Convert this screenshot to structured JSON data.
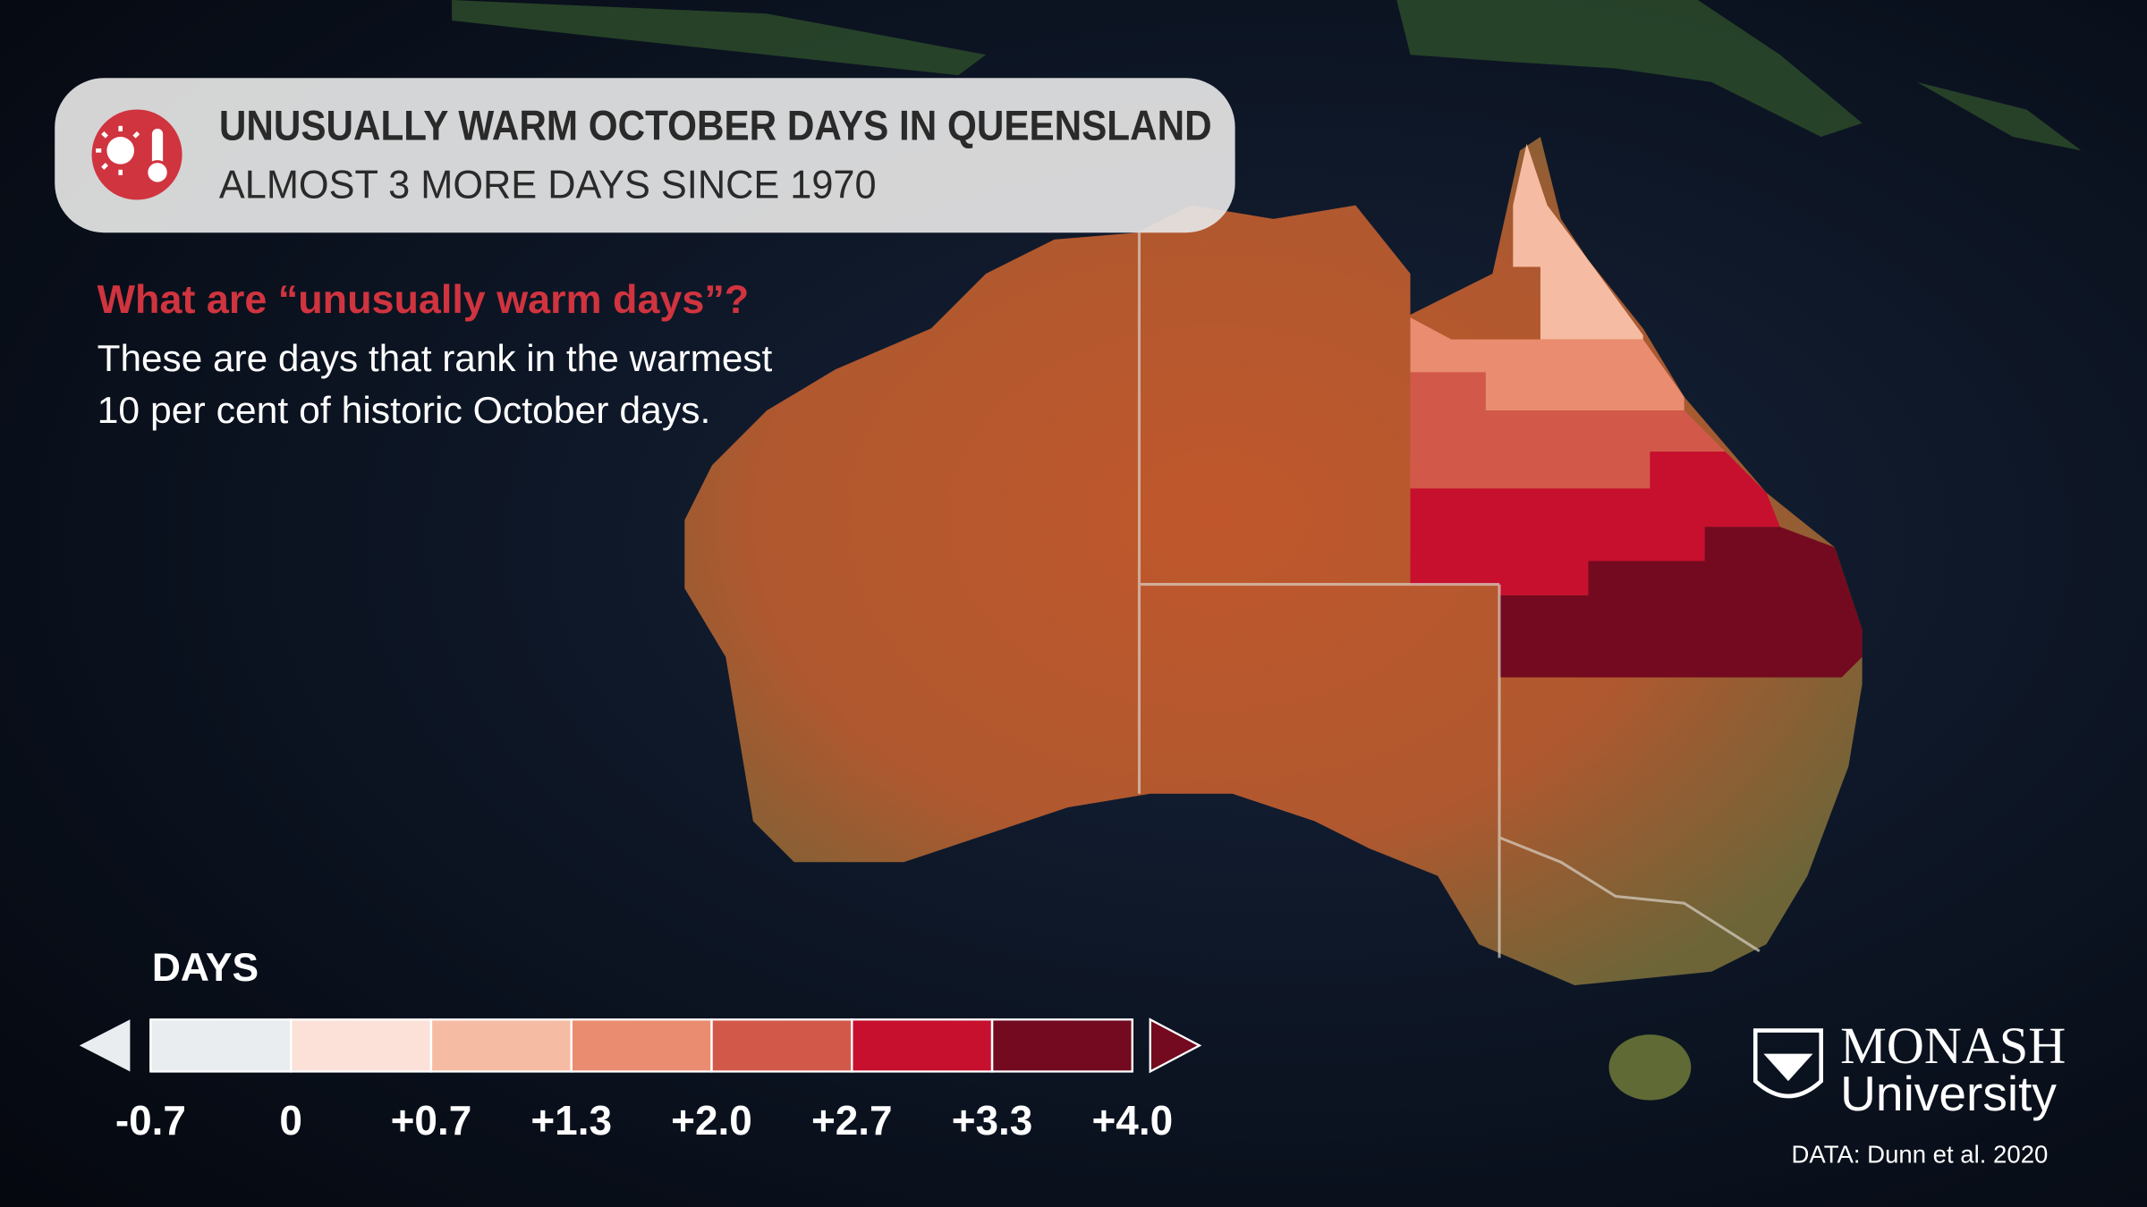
{
  "header": {
    "title": "UNUSUALLY WARM OCTOBER DAYS IN QUEENSLAND",
    "subtitle": "ALMOST 3 MORE DAYS SINCE 1970"
  },
  "explainer": {
    "question": "What are “unusually warm days”?",
    "lines": [
      "These are days that rank in the warmest",
      "10 per cent of historic October days."
    ]
  },
  "legend": {
    "title": "DAYS",
    "ticks": [
      {
        "value": -0.7,
        "label": "-0.7"
      },
      0,
      {
        "value": 0.7,
        "label": "+0.7"
      },
      {
        "value": 1.3,
        "label": "+1.3"
      },
      {
        "value": 2.0,
        "label": "+2.0"
      },
      {
        "value": 2.7,
        "label": "+2.7"
      },
      {
        "value": 3.3,
        "label": "+3.3"
      },
      {
        "value": 4.0,
        "label": "+4.0"
      }
    ],
    "colors": [
      "#e9edf0",
      "#fbe1d8",
      "#f6bca3",
      "#ea8c6f",
      "#d2594a",
      "#c70f2e",
      "#730a1f"
    ]
  },
  "map": {
    "region_values": [
      1.0,
      1.6,
      2.3,
      3.0,
      3.6
    ]
  },
  "logo": {
    "name": "MONASH",
    "subname": "University"
  },
  "credit": "DATA: Dunn et al. 2020"
}
